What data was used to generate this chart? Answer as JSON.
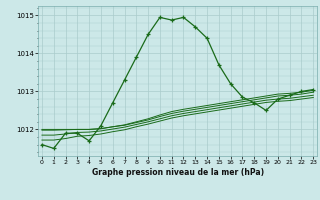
{
  "title": "Graphe pression niveau de la mer (hPa)",
  "bg_color": "#cce8e8",
  "grid_color": "#aacccc",
  "line_color": "#1a6b1a",
  "x_ticks": [
    0,
    1,
    2,
    3,
    4,
    5,
    6,
    7,
    8,
    9,
    10,
    11,
    12,
    13,
    14,
    15,
    16,
    17,
    18,
    19,
    20,
    21,
    22,
    23
  ],
  "y_ticks": [
    1012,
    1013,
    1014,
    1015
  ],
  "ylim": [
    1011.3,
    1015.25
  ],
  "xlim": [
    -0.3,
    23.3
  ],
  "main_line": [
    1011.6,
    1011.5,
    1011.9,
    1011.9,
    1011.7,
    1012.1,
    1012.7,
    1013.3,
    1013.9,
    1014.5,
    1014.95,
    1014.88,
    1014.95,
    1014.7,
    1014.4,
    1013.7,
    1013.2,
    1012.85,
    1012.7,
    1012.5,
    1012.8,
    1012.9,
    1013.0,
    1013.05
  ],
  "flat_line1": [
    1012.0,
    1012.0,
    1012.0,
    1012.0,
    1012.0,
    1012.02,
    1012.07,
    1012.12,
    1012.2,
    1012.28,
    1012.38,
    1012.47,
    1012.53,
    1012.58,
    1012.63,
    1012.68,
    1012.73,
    1012.78,
    1012.83,
    1012.88,
    1012.93,
    1012.95,
    1012.98,
    1013.03
  ],
  "flat_line2": [
    1011.98,
    1011.98,
    1011.99,
    1012.0,
    1012.0,
    1012.02,
    1012.07,
    1012.11,
    1012.18,
    1012.25,
    1012.34,
    1012.42,
    1012.48,
    1012.53,
    1012.58,
    1012.63,
    1012.68,
    1012.73,
    1012.78,
    1012.83,
    1012.88,
    1012.9,
    1012.93,
    1012.98
  ],
  "flat_line3": [
    1011.85,
    1011.85,
    1011.88,
    1011.92,
    1011.93,
    1011.96,
    1012.01,
    1012.06,
    1012.13,
    1012.2,
    1012.28,
    1012.36,
    1012.42,
    1012.47,
    1012.52,
    1012.57,
    1012.62,
    1012.67,
    1012.72,
    1012.77,
    1012.8,
    1012.82,
    1012.86,
    1012.9
  ],
  "flat_line4": [
    1011.72,
    1011.72,
    1011.76,
    1011.82,
    1011.84,
    1011.88,
    1011.94,
    1011.99,
    1012.07,
    1012.14,
    1012.22,
    1012.3,
    1012.36,
    1012.41,
    1012.46,
    1012.51,
    1012.56,
    1012.61,
    1012.66,
    1012.71,
    1012.74,
    1012.76,
    1012.8,
    1012.84
  ]
}
